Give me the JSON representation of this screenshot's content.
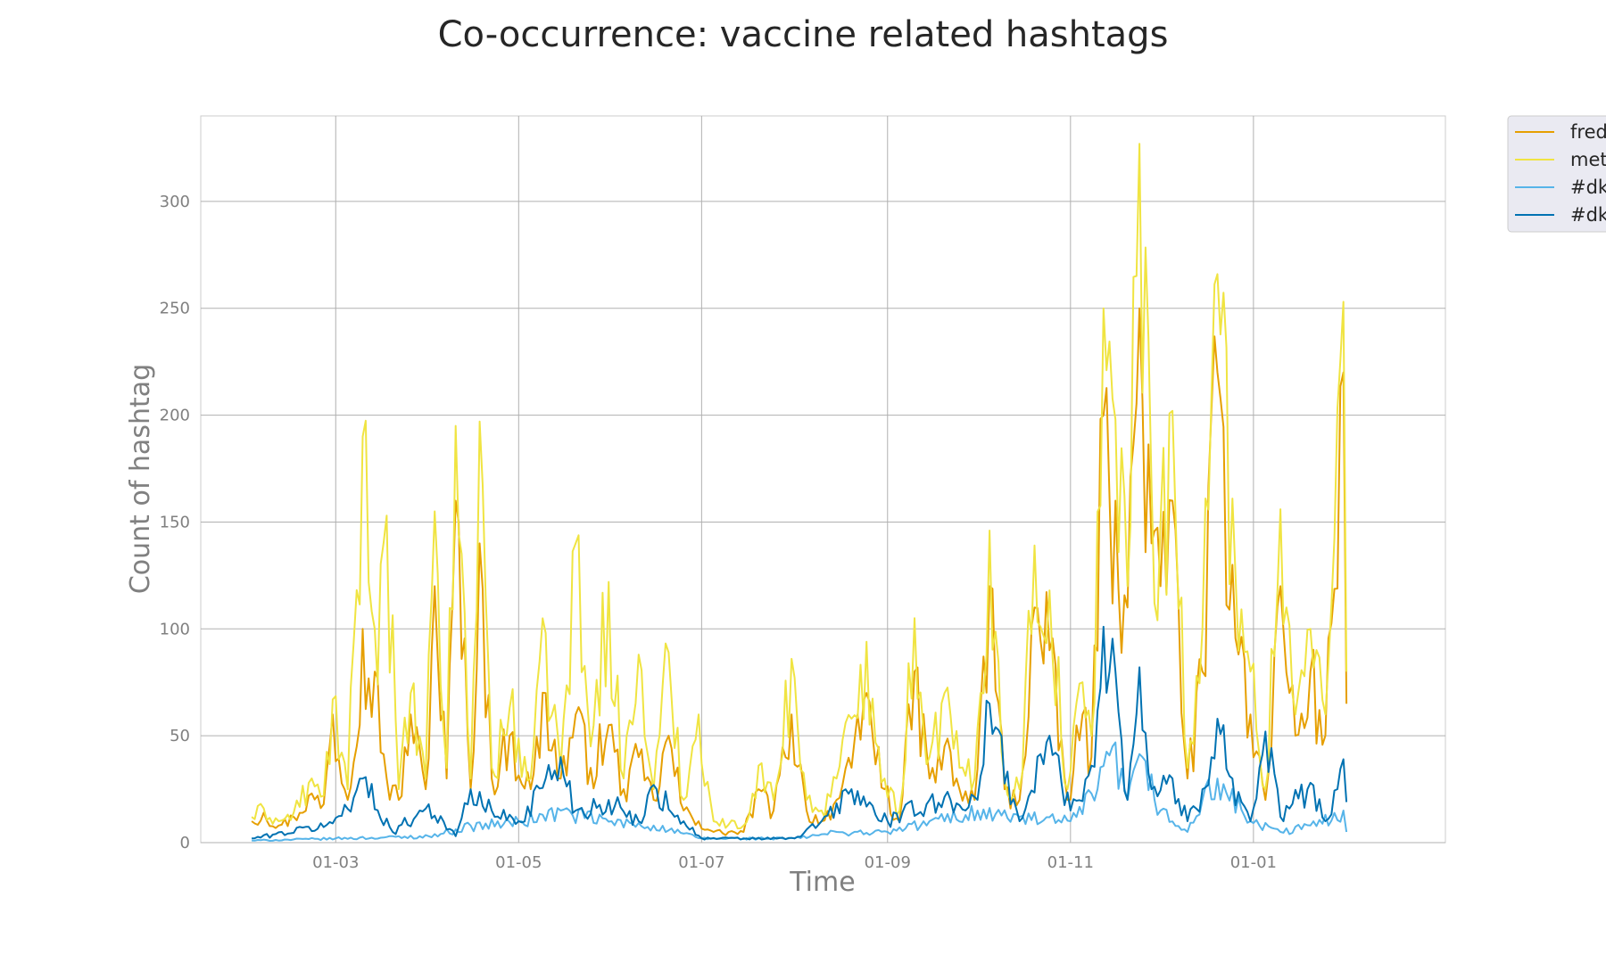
{
  "chart_data": {
    "type": "line",
    "title": "Co-occurrence: vaccine related hashtags",
    "xlabel": "Time",
    "ylabel": "Count of hashtag",
    "x_start": "2021-02-01",
    "x_end": "2022-02-01",
    "xlim": [
      "2021-01-15",
      "2022-03-06"
    ],
    "ylim": [
      0,
      340
    ],
    "x_ticks": [
      {
        "date": "2021-03-01",
        "label": "01-03"
      },
      {
        "date": "2021-05-01",
        "label": "01-05"
      },
      {
        "date": "2021-07-01",
        "label": "01-07"
      },
      {
        "date": "2021-09-01",
        "label": "01-09"
      },
      {
        "date": "2021-11-01",
        "label": "01-11"
      },
      {
        "date": "2022-01-01",
        "label": "01-01"
      }
    ],
    "y_ticks": [
      0,
      50,
      100,
      150,
      200,
      250,
      300
    ],
    "grid": true,
    "legend_position": "outside-top-right",
    "legend_labels": [
      "fred",
      "met",
      "#dk",
      "#dk"
    ],
    "series": [
      {
        "name": "fred",
        "color": "#E69F00",
        "anchors": [
          [
            "2021-02-01",
            10
          ],
          [
            "2021-02-05",
            14
          ],
          [
            "2021-02-10",
            8
          ],
          [
            "2021-02-15",
            12
          ],
          [
            "2021-02-20",
            22
          ],
          [
            "2021-02-25",
            18
          ],
          [
            "2021-02-28",
            60
          ],
          [
            "2021-03-05",
            20
          ],
          [
            "2021-03-10",
            100
          ],
          [
            "2021-03-14",
            80
          ],
          [
            "2021-03-18",
            30
          ],
          [
            "2021-03-22",
            20
          ],
          [
            "2021-03-26",
            60
          ],
          [
            "2021-03-31",
            25
          ],
          [
            "2021-04-03",
            120
          ],
          [
            "2021-04-07",
            30
          ],
          [
            "2021-04-10",
            160
          ],
          [
            "2021-04-15",
            25
          ],
          [
            "2021-04-18",
            140
          ],
          [
            "2021-04-22",
            30
          ],
          [
            "2021-04-28",
            50
          ],
          [
            "2021-05-05",
            25
          ],
          [
            "2021-05-10",
            70
          ],
          [
            "2021-05-15",
            30
          ],
          [
            "2021-05-20",
            60
          ],
          [
            "2021-05-25",
            35
          ],
          [
            "2021-05-31",
            55
          ],
          [
            "2021-06-05",
            25
          ],
          [
            "2021-06-10",
            40
          ],
          [
            "2021-06-15",
            20
          ],
          [
            "2021-06-20",
            50
          ],
          [
            "2021-06-25",
            15
          ],
          [
            "2021-06-30",
            10
          ],
          [
            "2021-07-05",
            5
          ],
          [
            "2021-07-15",
            5
          ],
          [
            "2021-07-20",
            25
          ],
          [
            "2021-07-25",
            15
          ],
          [
            "2021-07-31",
            60
          ],
          [
            "2021-08-05",
            15
          ],
          [
            "2021-08-10",
            10
          ],
          [
            "2021-08-15",
            20
          ],
          [
            "2021-08-20",
            35
          ],
          [
            "2021-08-25",
            70
          ],
          [
            "2021-08-31",
            25
          ],
          [
            "2021-09-05",
            10
          ],
          [
            "2021-09-10",
            80
          ],
          [
            "2021-09-15",
            30
          ],
          [
            "2021-09-20",
            45
          ],
          [
            "2021-09-25",
            25
          ],
          [
            "2021-09-30",
            20
          ],
          [
            "2021-10-05",
            120
          ],
          [
            "2021-10-10",
            25
          ],
          [
            "2021-10-15",
            20
          ],
          [
            "2021-10-20",
            110
          ],
          [
            "2021-10-25",
            90
          ],
          [
            "2021-10-31",
            20
          ],
          [
            "2021-11-05",
            60
          ],
          [
            "2021-11-08",
            40
          ],
          [
            "2021-11-12",
            200
          ],
          [
            "2021-11-16",
            160
          ],
          [
            "2021-11-20",
            110
          ],
          [
            "2021-11-24",
            250
          ],
          [
            "2021-11-28",
            140
          ],
          [
            "2021-12-01",
            120
          ],
          [
            "2021-12-05",
            160
          ],
          [
            "2021-12-10",
            30
          ],
          [
            "2021-12-15",
            80
          ],
          [
            "2021-12-20",
            220
          ],
          [
            "2021-12-25",
            130
          ],
          [
            "2021-12-31",
            60
          ],
          [
            "2022-01-05",
            20
          ],
          [
            "2022-01-10",
            120
          ],
          [
            "2022-01-15",
            50
          ],
          [
            "2022-01-20",
            80
          ],
          [
            "2022-01-25",
            50
          ],
          [
            "2022-01-31",
            220
          ],
          [
            "2022-02-01",
            65
          ]
        ]
      },
      {
        "name": "met",
        "color": "#F0E442",
        "anchors": [
          [
            "2021-02-01",
            12
          ],
          [
            "2021-02-05",
            16
          ],
          [
            "2021-02-10",
            10
          ],
          [
            "2021-02-15",
            14
          ],
          [
            "2021-02-20",
            28
          ],
          [
            "2021-02-25",
            22
          ],
          [
            "2021-02-28",
            67
          ],
          [
            "2021-03-05",
            25
          ],
          [
            "2021-03-10",
            190
          ],
          [
            "2021-03-14",
            100
          ],
          [
            "2021-03-18",
            153
          ],
          [
            "2021-03-22",
            25
          ],
          [
            "2021-03-26",
            70
          ],
          [
            "2021-03-31",
            30
          ],
          [
            "2021-04-03",
            155
          ],
          [
            "2021-04-07",
            35
          ],
          [
            "2021-04-10",
            195
          ],
          [
            "2021-04-15",
            30
          ],
          [
            "2021-04-18",
            197
          ],
          [
            "2021-04-22",
            35
          ],
          [
            "2021-04-28",
            63
          ],
          [
            "2021-05-05",
            30
          ],
          [
            "2021-05-10",
            98
          ],
          [
            "2021-05-15",
            35
          ],
          [
            "2021-05-20",
            140
          ],
          [
            "2021-05-25",
            45
          ],
          [
            "2021-05-31",
            122
          ],
          [
            "2021-06-05",
            30
          ],
          [
            "2021-06-10",
            88
          ],
          [
            "2021-06-15",
            25
          ],
          [
            "2021-06-20",
            89
          ],
          [
            "2021-06-25",
            20
          ],
          [
            "2021-06-30",
            60
          ],
          [
            "2021-07-05",
            10
          ],
          [
            "2021-07-15",
            8
          ],
          [
            "2021-07-20",
            36
          ],
          [
            "2021-07-25",
            20
          ],
          [
            "2021-07-31",
            86
          ],
          [
            "2021-08-05",
            20
          ],
          [
            "2021-08-10",
            15
          ],
          [
            "2021-08-15",
            30
          ],
          [
            "2021-08-20",
            58
          ],
          [
            "2021-08-25",
            94
          ],
          [
            "2021-08-31",
            30
          ],
          [
            "2021-09-05",
            15
          ],
          [
            "2021-09-10",
            105
          ],
          [
            "2021-09-15",
            40
          ],
          [
            "2021-09-20",
            70
          ],
          [
            "2021-09-25",
            35
          ],
          [
            "2021-09-30",
            30
          ],
          [
            "2021-10-05",
            146
          ],
          [
            "2021-10-10",
            30
          ],
          [
            "2021-10-15",
            25
          ],
          [
            "2021-10-20",
            139
          ],
          [
            "2021-10-25",
            118
          ],
          [
            "2021-10-31",
            25
          ],
          [
            "2021-11-05",
            75
          ],
          [
            "2021-11-08",
            50
          ],
          [
            "2021-11-12",
            250
          ],
          [
            "2021-11-16",
            198
          ],
          [
            "2021-11-20",
            120
          ],
          [
            "2021-11-24",
            327
          ],
          [
            "2021-11-28",
            168
          ],
          [
            "2021-12-01",
            150
          ],
          [
            "2021-12-05",
            202
          ],
          [
            "2021-12-10",
            35
          ],
          [
            "2021-12-15",
            100
          ],
          [
            "2021-12-20",
            266
          ],
          [
            "2021-12-25",
            161
          ],
          [
            "2021-12-31",
            80
          ],
          [
            "2022-01-05",
            25
          ],
          [
            "2022-01-10",
            156
          ],
          [
            "2022-01-15",
            60
          ],
          [
            "2022-01-20",
            100
          ],
          [
            "2022-01-25",
            60
          ],
          [
            "2022-01-31",
            253
          ],
          [
            "2022-02-01",
            80
          ]
        ]
      },
      {
        "name": "#dk",
        "color": "#56B4E9",
        "anchors": [
          [
            "2021-02-01",
            1
          ],
          [
            "2021-03-01",
            2
          ],
          [
            "2021-04-01",
            3
          ],
          [
            "2021-04-15",
            8
          ],
          [
            "2021-05-01",
            10
          ],
          [
            "2021-05-15",
            15
          ],
          [
            "2021-06-01",
            10
          ],
          [
            "2021-06-15",
            8
          ],
          [
            "2021-07-01",
            2
          ],
          [
            "2021-08-01",
            2
          ],
          [
            "2021-08-15",
            5
          ],
          [
            "2021-09-01",
            5
          ],
          [
            "2021-09-15",
            10
          ],
          [
            "2021-10-01",
            15
          ],
          [
            "2021-10-15",
            12
          ],
          [
            "2021-11-01",
            10
          ],
          [
            "2021-11-10",
            25
          ],
          [
            "2021-11-15",
            45
          ],
          [
            "2021-11-20",
            20
          ],
          [
            "2021-11-25",
            40
          ],
          [
            "2021-12-01",
            15
          ],
          [
            "2021-12-10",
            5
          ],
          [
            "2021-12-15",
            20
          ],
          [
            "2021-12-20",
            30
          ],
          [
            "2021-12-31",
            10
          ],
          [
            "2022-01-10",
            5
          ],
          [
            "2022-01-20",
            8
          ],
          [
            "2022-01-31",
            15
          ],
          [
            "2022-02-01",
            5
          ]
        ]
      },
      {
        "name": "#dk",
        "color": "#0072B2",
        "anchors": [
          [
            "2021-02-01",
            2
          ],
          [
            "2021-02-28",
            9
          ],
          [
            "2021-03-10",
            30
          ],
          [
            "2021-03-20",
            5
          ],
          [
            "2021-04-01",
            18
          ],
          [
            "2021-04-10",
            3
          ],
          [
            "2021-04-15",
            25
          ],
          [
            "2021-04-22",
            15
          ],
          [
            "2021-05-01",
            10
          ],
          [
            "2021-05-10",
            30
          ],
          [
            "2021-05-15",
            40
          ],
          [
            "2021-05-20",
            15
          ],
          [
            "2021-05-31",
            20
          ],
          [
            "2021-06-10",
            10
          ],
          [
            "2021-06-15",
            27
          ],
          [
            "2021-06-25",
            10
          ],
          [
            "2021-07-01",
            2
          ],
          [
            "2021-08-01",
            2
          ],
          [
            "2021-08-10",
            10
          ],
          [
            "2021-08-20",
            25
          ],
          [
            "2021-09-01",
            10
          ],
          [
            "2021-09-15",
            20
          ],
          [
            "2021-10-01",
            20
          ],
          [
            "2021-10-05",
            65
          ],
          [
            "2021-10-15",
            10
          ],
          [
            "2021-10-25",
            50
          ],
          [
            "2021-11-01",
            15
          ],
          [
            "2021-11-08",
            36
          ],
          [
            "2021-11-12",
            101
          ],
          [
            "2021-11-16",
            80
          ],
          [
            "2021-11-20",
            20
          ],
          [
            "2021-11-24",
            82
          ],
          [
            "2021-11-28",
            25
          ],
          [
            "2021-12-05",
            30
          ],
          [
            "2021-12-10",
            10
          ],
          [
            "2021-12-15",
            25
          ],
          [
            "2021-12-20",
            58
          ],
          [
            "2021-12-25",
            30
          ],
          [
            "2021-12-31",
            10
          ],
          [
            "2022-01-05",
            52
          ],
          [
            "2022-01-10",
            12
          ],
          [
            "2022-01-20",
            28
          ],
          [
            "2022-01-25",
            10
          ],
          [
            "2022-01-31",
            39
          ],
          [
            "2022-02-01",
            19
          ]
        ]
      }
    ]
  }
}
